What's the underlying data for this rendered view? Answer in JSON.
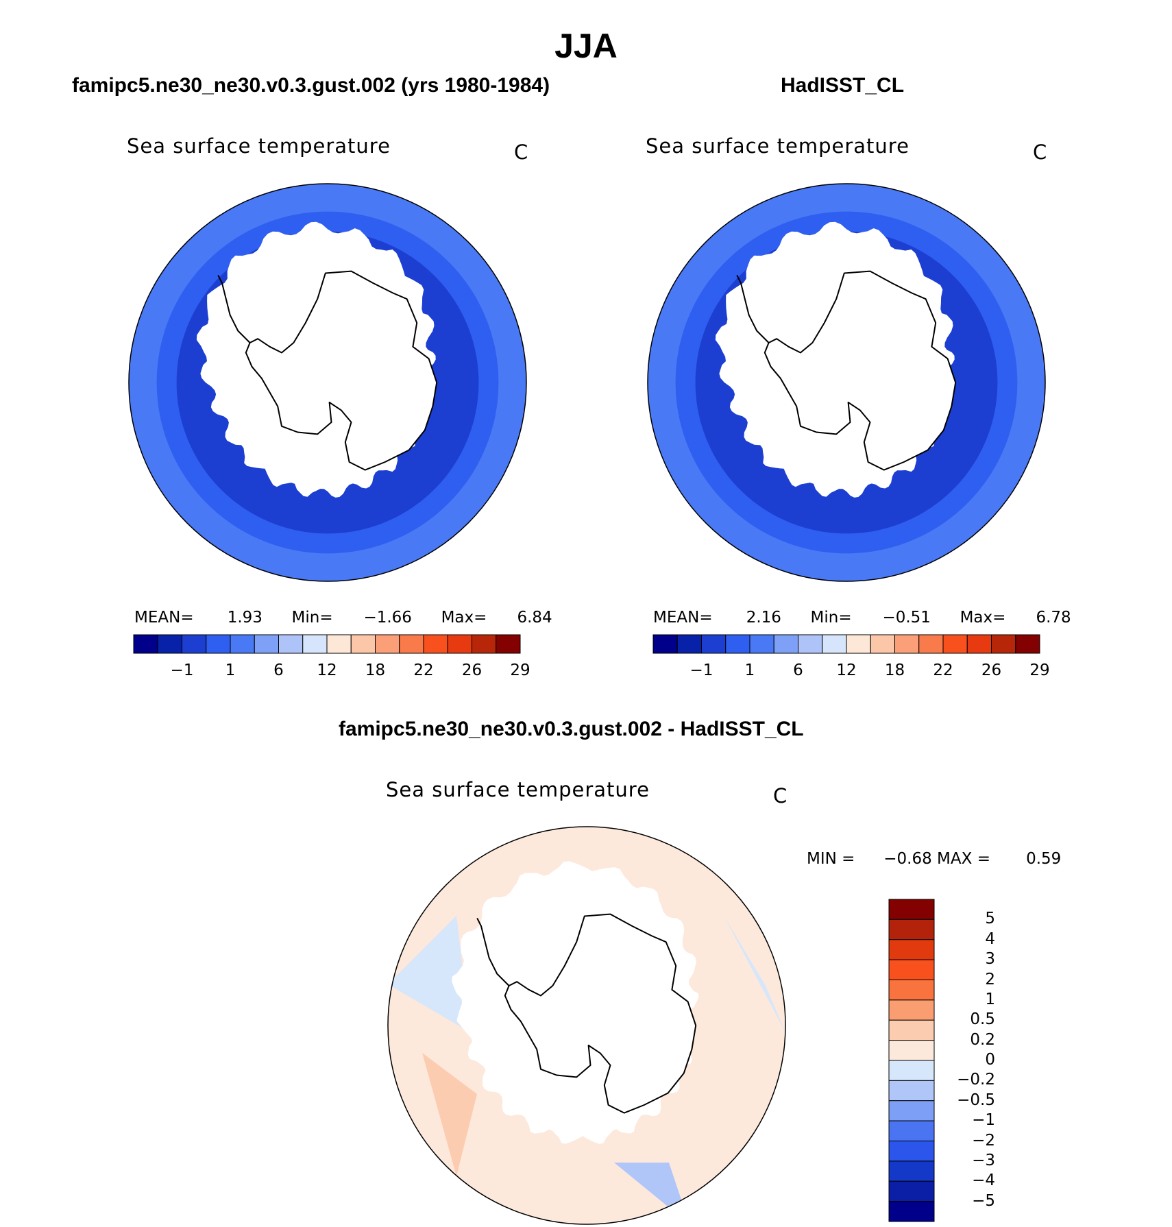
{
  "main_title": "JJA",
  "colors": {
    "abs_scale": [
      "#00008b",
      "#0722a8",
      "#1c3fd2",
      "#2f5ff0",
      "#4a79f5",
      "#7ea0f7",
      "#aec4f8",
      "#d6e5fb",
      "#fde8d8",
      "#fcc6a8",
      "#fa9f78",
      "#f97a4a",
      "#f9511d",
      "#e83a10",
      "#b8260a",
      "#840101"
    ],
    "diff_scale": [
      "#00008b",
      "#0a1fa6",
      "#1438c8",
      "#2c55ec",
      "#4a74f2",
      "#7d9ff6",
      "#b0c6f8",
      "#d6e6fb",
      "#fde9dc",
      "#fcccb0",
      "#fa9e72",
      "#f9733f",
      "#f9511d",
      "#e03a0e",
      "#b3230b",
      "#840101"
    ],
    "antarctica": "#ffffff",
    "coast": "#000000"
  },
  "panels": [
    {
      "title": "famipc5.ne30_ne30.v0.3.gust.002 (yrs 1980-1984)",
      "variable": "Sea surface temperature",
      "unit": "C",
      "stats": {
        "mean_label": "MEAN=",
        "mean": "1.93",
        "min_label": "Min=",
        "min": "−1.66",
        "max_label": "Max=",
        "max": "6.84"
      },
      "colorbar_ticks": [
        "−1",
        "1",
        "6",
        "12",
        "18",
        "22",
        "26",
        "29"
      ]
    },
    {
      "title": "HadISST_CL",
      "variable": "Sea surface temperature",
      "unit": "C",
      "stats": {
        "mean_label": "MEAN=",
        "mean": "2.16",
        "min_label": "Min=",
        "min": "−0.51",
        "max_label": "Max=",
        "max": "6.78"
      },
      "colorbar_ticks": [
        "−1",
        "1",
        "6",
        "12",
        "18",
        "22",
        "26",
        "29"
      ]
    }
  ],
  "diff_panel": {
    "title": "famipc5.ne30_ne30.v0.3.gust.002 - HadISST_CL",
    "variable": "Sea surface temperature",
    "unit": "C",
    "stats": {
      "min_label": "MIN =",
      "min": "−0.68",
      "max_label": "MAX =",
      "max": "0.59"
    },
    "colorbar_ticks": [
      "5",
      "4",
      "3",
      "2",
      "1",
      "0.5",
      "0.2",
      "0",
      "−0.2",
      "−0.5",
      "−1",
      "−2",
      "−3",
      "−4",
      "−5"
    ]
  },
  "chart_data": [
    {
      "type": "heatmap",
      "title": "famipc5.ne30_ne30.v0.3.gust.002 (yrs 1980-1984)",
      "variable": "Sea surface temperature",
      "unit": "C",
      "projection": "polar stereographic (south)",
      "mean": 1.93,
      "min": -1.66,
      "max": 6.84,
      "contour_levels": [
        -1,
        1,
        6,
        12,
        18,
        22,
        26,
        29
      ]
    },
    {
      "type": "heatmap",
      "title": "HadISST_CL",
      "variable": "Sea surface temperature",
      "unit": "C",
      "projection": "polar stereographic (south)",
      "mean": 2.16,
      "min": -0.51,
      "max": 6.78,
      "contour_levels": [
        -1,
        1,
        6,
        12,
        18,
        22,
        26,
        29
      ]
    },
    {
      "type": "heatmap",
      "title": "famipc5.ne30_ne30.v0.3.gust.002 - HadISST_CL",
      "variable": "Sea surface temperature",
      "unit": "C",
      "projection": "polar stereographic (south)",
      "min": -0.68,
      "max": 0.59,
      "contour_levels": [
        -5,
        -4,
        -3,
        -2,
        -1,
        -0.5,
        -0.2,
        0,
        0.2,
        0.5,
        1,
        2,
        3,
        4,
        5
      ]
    }
  ]
}
